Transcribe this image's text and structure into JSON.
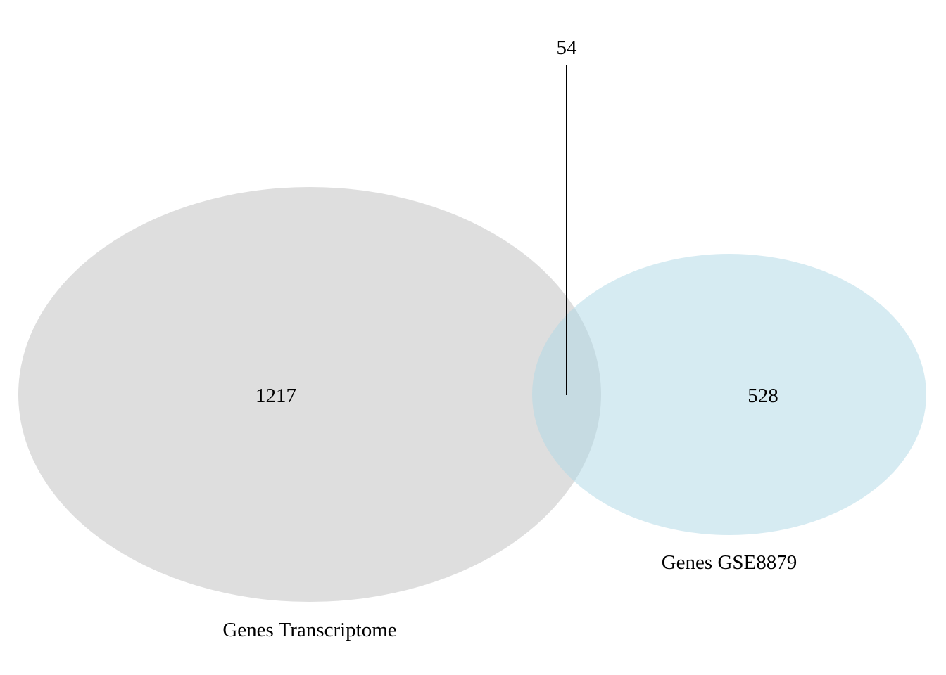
{
  "venn": {
    "sets": [
      {
        "name": "Genes Transcriptome",
        "unique_count": "1217",
        "color": "#dedede"
      },
      {
        "name": "Genes GSE8879",
        "unique_count": "528",
        "color": "#add8e6"
      }
    ],
    "intersection": {
      "count": "54"
    }
  }
}
